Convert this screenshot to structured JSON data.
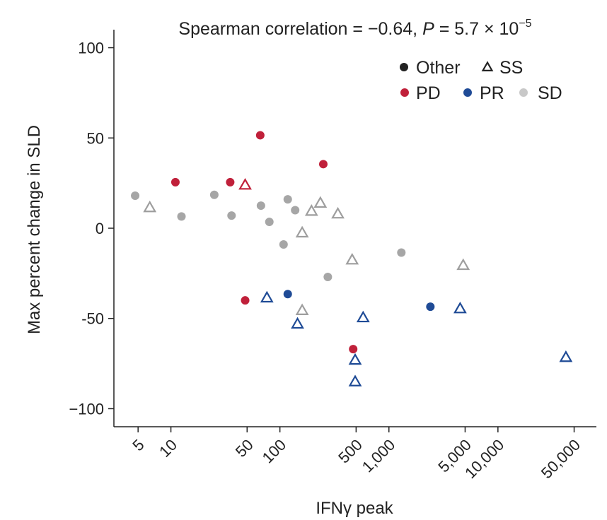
{
  "chart_data": {
    "type": "scatter",
    "title": {
      "prefix": "Spearman correlation = −0.64, ",
      "p_symbol": "P",
      "value": " = 5.7 × 10",
      "exponent": "−5"
    },
    "xlabel": "IFNγ peak",
    "ylabel": "Max percent change in SLD",
    "x_scale": "log",
    "xlim": [
      3,
      80000
    ],
    "ylim": [
      -110,
      110
    ],
    "x_ticks": [
      {
        "value": 5,
        "label": "5"
      },
      {
        "value": 10,
        "label": "10"
      },
      {
        "value": 50,
        "label": "50"
      },
      {
        "value": 100,
        "label": "100"
      },
      {
        "value": 500,
        "label": "500"
      },
      {
        "value": 1000,
        "label": "1,000"
      },
      {
        "value": 5000,
        "label": "5,000"
      },
      {
        "value": 10000,
        "label": "10,000"
      },
      {
        "value": 50000,
        "label": "50,000"
      }
    ],
    "y_ticks": [
      {
        "value": 100,
        "label": "100"
      },
      {
        "value": 50,
        "label": "50"
      },
      {
        "value": 0,
        "label": "0"
      },
      {
        "value": -50,
        "label": "-50"
      },
      {
        "value": -100,
        "label": "−100"
      }
    ],
    "colors": {
      "PD": "#c0203a",
      "PR": "#1f4b96",
      "SD": "#a6a6a6",
      "SD_triangle": "#9e9e9e",
      "Other": "#222222"
    },
    "legend": {
      "shapes": [
        {
          "label": "Other",
          "shape": "circle",
          "color": "#222222"
        },
        {
          "label": "SS",
          "shape": "triangle",
          "color": "#222222"
        }
      ],
      "responses": [
        {
          "label": "PD",
          "color": "#c0203a"
        },
        {
          "label": "PR",
          "color": "#1f4b96"
        },
        {
          "label": "SD",
          "color": "#c8c8c8"
        }
      ]
    },
    "series": [
      {
        "name": "PD",
        "points": [
          {
            "x": 11,
            "y": 25.5,
            "shape": "circle"
          },
          {
            "x": 35,
            "y": 25.5,
            "shape": "circle"
          },
          {
            "x": 48,
            "y": 24,
            "shape": "triangle"
          },
          {
            "x": 66,
            "y": 51.5,
            "shape": "circle"
          },
          {
            "x": 48,
            "y": -40,
            "shape": "circle"
          },
          {
            "x": 250,
            "y": 35.5,
            "shape": "circle"
          },
          {
            "x": 470,
            "y": -67,
            "shape": "circle"
          }
        ]
      },
      {
        "name": "PR",
        "points": [
          {
            "x": 76,
            "y": -38.5,
            "shape": "triangle"
          },
          {
            "x": 118,
            "y": -36.5,
            "shape": "circle"
          },
          {
            "x": 145,
            "y": -53,
            "shape": "triangle"
          },
          {
            "x": 490,
            "y": -73,
            "shape": "triangle"
          },
          {
            "x": 490,
            "y": -85,
            "shape": "triangle"
          },
          {
            "x": 580,
            "y": -49.5,
            "shape": "triangle"
          },
          {
            "x": 2400,
            "y": -43.5,
            "shape": "circle"
          },
          {
            "x": 4500,
            "y": -44.5,
            "shape": "triangle"
          },
          {
            "x": 42000,
            "y": -71.5,
            "shape": "triangle"
          }
        ]
      },
      {
        "name": "SD",
        "points": [
          {
            "x": 4.7,
            "y": 18,
            "shape": "circle"
          },
          {
            "x": 6.4,
            "y": 11.5,
            "shape": "triangle"
          },
          {
            "x": 12.5,
            "y": 6.5,
            "shape": "circle"
          },
          {
            "x": 25,
            "y": 18.5,
            "shape": "circle"
          },
          {
            "x": 36,
            "y": 7,
            "shape": "circle"
          },
          {
            "x": 67,
            "y": 12.5,
            "shape": "circle"
          },
          {
            "x": 80,
            "y": 3.5,
            "shape": "circle"
          },
          {
            "x": 108,
            "y": -9,
            "shape": "circle"
          },
          {
            "x": 118,
            "y": 16,
            "shape": "circle"
          },
          {
            "x": 138,
            "y": 10,
            "shape": "circle"
          },
          {
            "x": 160,
            "y": -2.5,
            "shape": "triangle"
          },
          {
            "x": 160,
            "y": -45.5,
            "shape": "triangle"
          },
          {
            "x": 195,
            "y": 9.5,
            "shape": "triangle"
          },
          {
            "x": 235,
            "y": 14,
            "shape": "triangle"
          },
          {
            "x": 275,
            "y": -27,
            "shape": "circle"
          },
          {
            "x": 340,
            "y": 8,
            "shape": "triangle"
          },
          {
            "x": 460,
            "y": -17.5,
            "shape": "triangle"
          },
          {
            "x": 1300,
            "y": -13.5,
            "shape": "circle"
          },
          {
            "x": 4800,
            "y": -20.5,
            "shape": "triangle"
          }
        ]
      }
    ]
  }
}
